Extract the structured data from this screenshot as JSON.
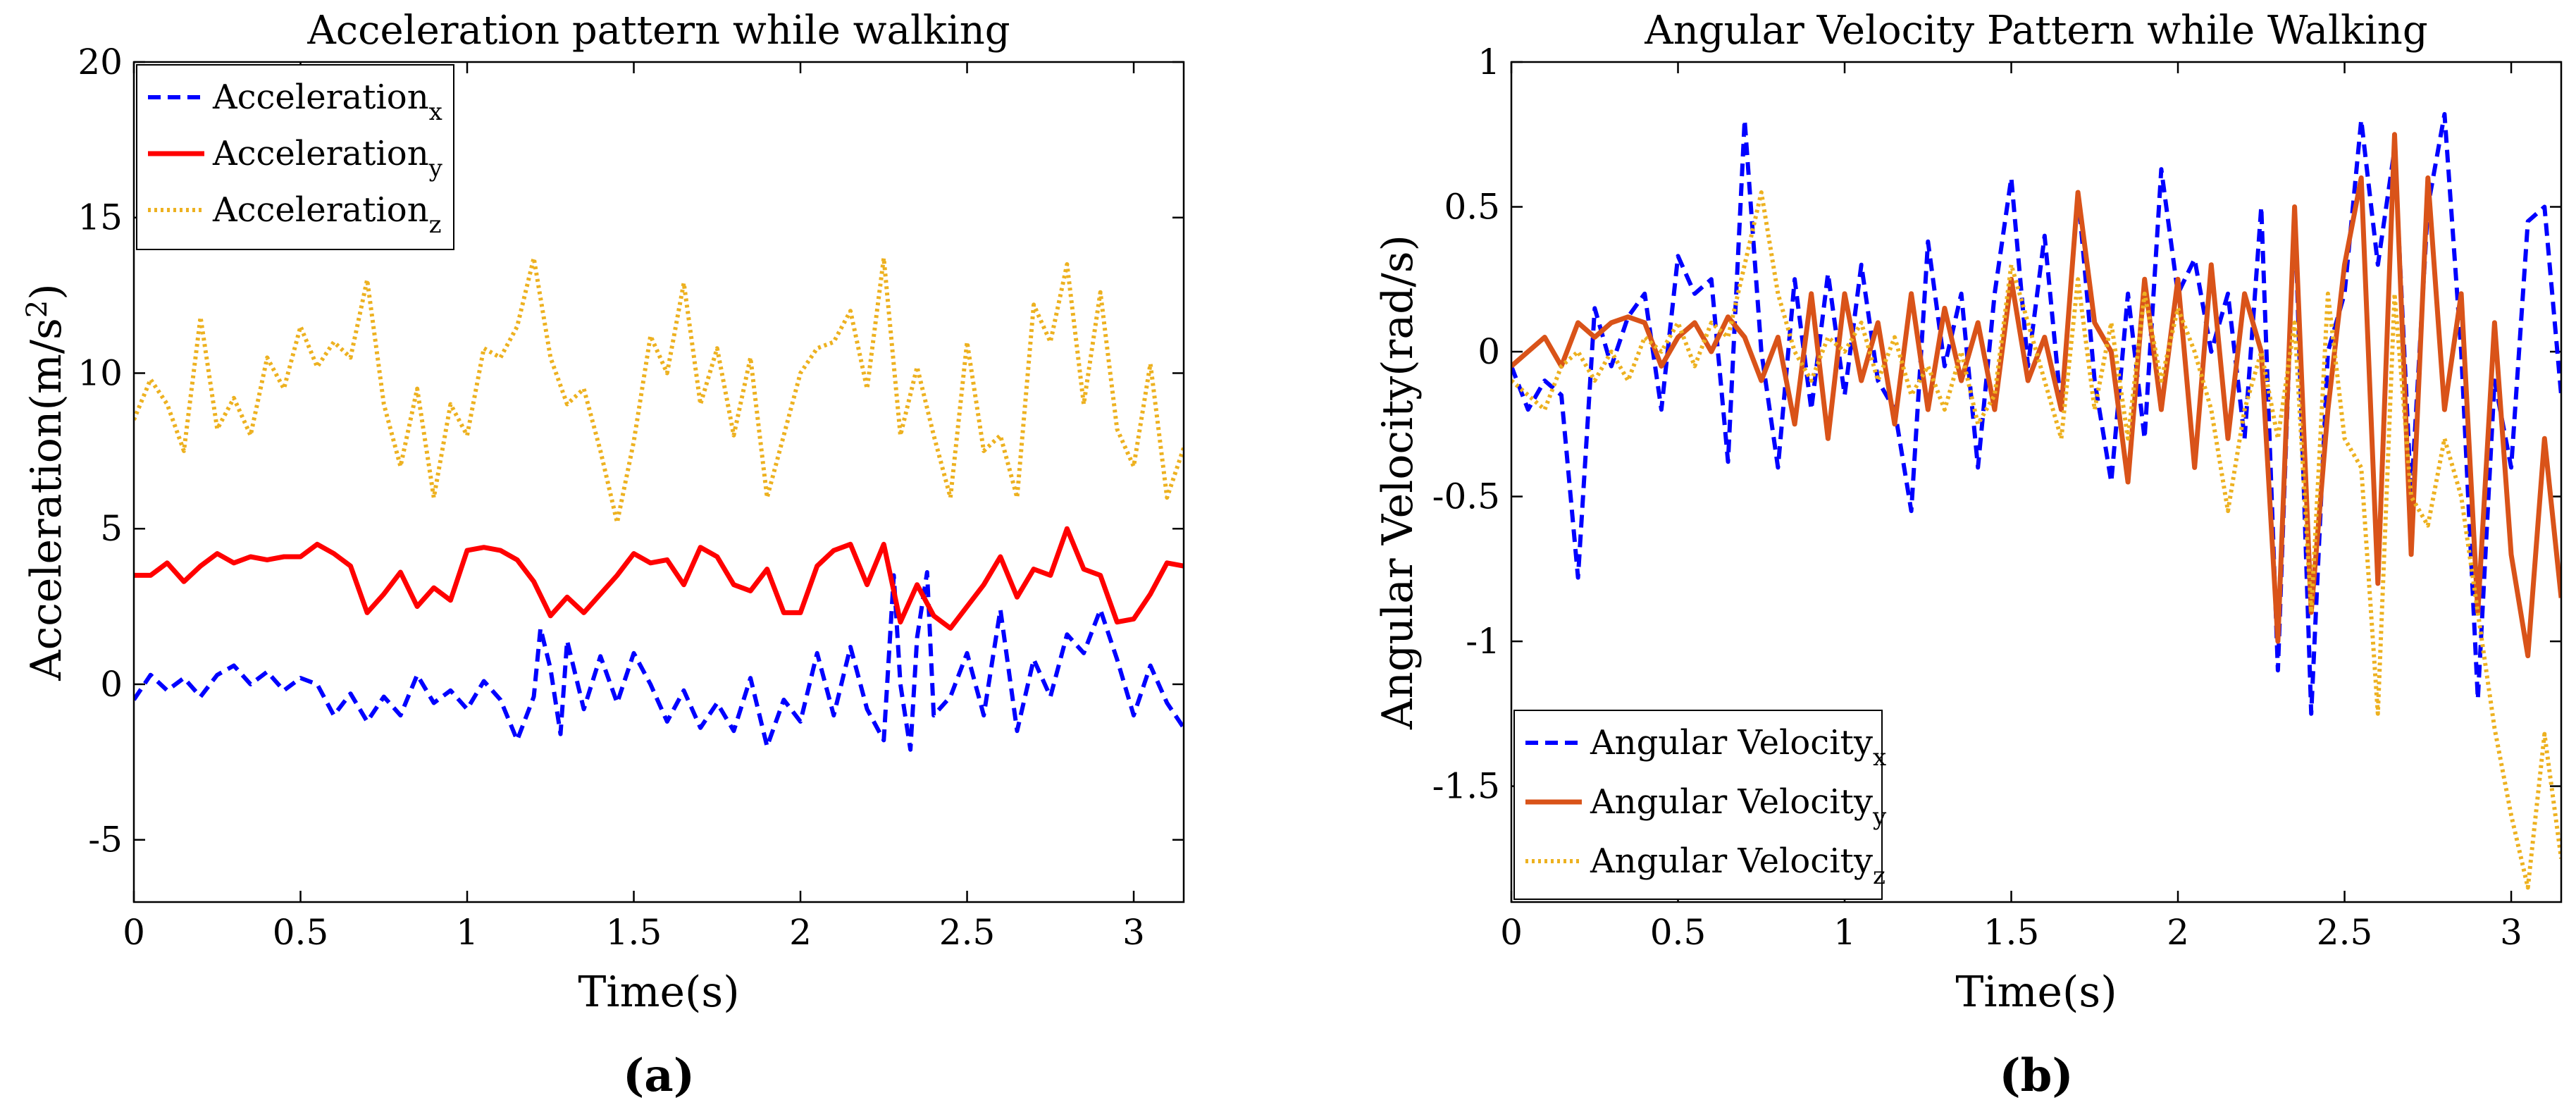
{
  "chart_data": [
    {
      "type": "line",
      "panel_label": "(a)",
      "title": "Acceleration pattern while walking",
      "xlabel": "Time(s)",
      "ylabel": "Acceleration(m/s",
      "ylabel_sup": "2",
      "ylabel_close": ")",
      "xlim": [
        0,
        3.15
      ],
      "ylim": [
        -7,
        20
      ],
      "xticks": [
        0,
        0.5,
        1,
        1.5,
        2,
        2.5,
        3
      ],
      "xtick_labels": [
        "0",
        "0.5",
        "1",
        "1.5",
        "2",
        "2.5",
        "3"
      ],
      "yticks": [
        -5,
        0,
        5,
        10,
        15,
        20
      ],
      "ytick_labels": [
        "-5",
        "0",
        "5",
        "10",
        "15",
        "20"
      ],
      "legend_position": "top-left",
      "series": [
        {
          "name": "Acceleration",
          "sub": "x",
          "color": "#0000ff",
          "style": "dashed",
          "x": [
            0,
            0.05,
            0.1,
            0.15,
            0.2,
            0.25,
            0.3,
            0.35,
            0.4,
            0.45,
            0.5,
            0.55,
            0.6,
            0.65,
            0.7,
            0.75,
            0.8,
            0.85,
            0.9,
            0.95,
            1.0,
            1.05,
            1.1,
            1.15,
            1.2,
            1.22,
            1.25,
            1.28,
            1.3,
            1.35,
            1.4,
            1.45,
            1.5,
            1.55,
            1.6,
            1.65,
            1.7,
            1.75,
            1.8,
            1.85,
            1.9,
            1.95,
            2.0,
            2.05,
            2.1,
            2.15,
            2.2,
            2.25,
            2.28,
            2.3,
            2.33,
            2.35,
            2.38,
            2.4,
            2.45,
            2.5,
            2.55,
            2.6,
            2.65,
            2.7,
            2.75,
            2.8,
            2.85,
            2.9,
            2.95,
            3.0,
            3.05,
            3.1,
            3.15
          ],
          "values": [
            -0.5,
            0.3,
            -0.2,
            0.2,
            -0.4,
            0.3,
            0.6,
            0.0,
            0.4,
            -0.2,
            0.2,
            0.0,
            -1.0,
            -0.3,
            -1.2,
            -0.4,
            -1.0,
            0.3,
            -0.6,
            -0.2,
            -0.8,
            0.1,
            -0.5,
            -1.8,
            -0.4,
            1.8,
            0.5,
            -1.6,
            1.4,
            -0.8,
            0.9,
            -0.6,
            1.0,
            0.0,
            -1.2,
            -0.2,
            -1.4,
            -0.6,
            -1.5,
            0.2,
            -2.0,
            -0.5,
            -1.2,
            1.0,
            -1.0,
            1.2,
            -0.8,
            -1.8,
            3.5,
            0.0,
            -2.1,
            1.5,
            3.6,
            -1.0,
            -0.4,
            1.0,
            -1.0,
            2.4,
            -1.5,
            0.8,
            -0.4,
            1.6,
            1.0,
            2.4,
            0.8,
            -1.0,
            0.6,
            -0.6,
            -1.4
          ]
        },
        {
          "name": "Acceleration",
          "sub": "y",
          "color": "#ff0000",
          "style": "solid",
          "x": [
            0,
            0.05,
            0.1,
            0.15,
            0.2,
            0.25,
            0.3,
            0.35,
            0.4,
            0.45,
            0.5,
            0.55,
            0.6,
            0.65,
            0.7,
            0.75,
            0.8,
            0.85,
            0.9,
            0.95,
            1.0,
            1.05,
            1.1,
            1.15,
            1.2,
            1.25,
            1.3,
            1.35,
            1.4,
            1.45,
            1.5,
            1.55,
            1.6,
            1.65,
            1.7,
            1.75,
            1.8,
            1.85,
            1.9,
            1.95,
            2.0,
            2.05,
            2.1,
            2.15,
            2.2,
            2.25,
            2.3,
            2.35,
            2.4,
            2.45,
            2.5,
            2.55,
            2.6,
            2.65,
            2.7,
            2.75,
            2.8,
            2.85,
            2.9,
            2.95,
            3.0,
            3.05,
            3.1,
            3.15
          ],
          "values": [
            3.5,
            3.5,
            3.9,
            3.3,
            3.8,
            4.2,
            3.9,
            4.1,
            4.0,
            4.1,
            4.1,
            4.5,
            4.2,
            3.8,
            2.3,
            2.9,
            3.6,
            2.5,
            3.1,
            2.7,
            4.3,
            4.4,
            4.3,
            4.0,
            3.3,
            2.2,
            2.8,
            2.3,
            2.9,
            3.5,
            4.2,
            3.9,
            4.0,
            3.2,
            4.4,
            4.1,
            3.2,
            3.0,
            3.7,
            2.3,
            2.3,
            3.8,
            4.3,
            4.5,
            3.2,
            4.5,
            2.0,
            3.2,
            2.2,
            1.8,
            2.5,
            3.2,
            4.1,
            2.8,
            3.7,
            3.5,
            5.0,
            3.7,
            3.5,
            2.0,
            2.1,
            2.9,
            3.9,
            3.8
          ]
        },
        {
          "name": "Acceleration",
          "sub": "z",
          "color": "#edb120",
          "style": "dotted",
          "x": [
            0,
            0.05,
            0.1,
            0.15,
            0.2,
            0.25,
            0.3,
            0.35,
            0.4,
            0.45,
            0.5,
            0.55,
            0.6,
            0.65,
            0.7,
            0.75,
            0.8,
            0.85,
            0.9,
            0.95,
            1.0,
            1.05,
            1.1,
            1.15,
            1.2,
            1.25,
            1.3,
            1.35,
            1.4,
            1.45,
            1.5,
            1.55,
            1.6,
            1.65,
            1.7,
            1.75,
            1.8,
            1.85,
            1.9,
            1.95,
            2.0,
            2.05,
            2.1,
            2.15,
            2.2,
            2.25,
            2.3,
            2.35,
            2.4,
            2.45,
            2.5,
            2.55,
            2.6,
            2.65,
            2.7,
            2.75,
            2.8,
            2.85,
            2.9,
            2.95,
            3.0,
            3.05,
            3.1,
            3.15
          ],
          "values": [
            8.5,
            9.8,
            9.0,
            7.5,
            11.8,
            8.2,
            9.2,
            8.0,
            10.5,
            9.5,
            11.5,
            10.2,
            11.0,
            10.5,
            13.0,
            9.0,
            7.0,
            9.5,
            6.0,
            9.0,
            8.0,
            10.8,
            10.5,
            11.5,
            13.7,
            10.5,
            9.0,
            9.5,
            7.5,
            5.2,
            7.8,
            11.2,
            10.0,
            12.9,
            9.0,
            10.8,
            8.0,
            10.5,
            6.0,
            8.0,
            10.0,
            10.8,
            11.0,
            12.0,
            9.5,
            13.7,
            8.0,
            10.2,
            8.0,
            6.0,
            11.0,
            7.5,
            8.0,
            6.0,
            12.2,
            11.0,
            13.5,
            9.0,
            12.6,
            8.2,
            7.0,
            10.3,
            6.0,
            7.6
          ]
        }
      ]
    },
    {
      "type": "line",
      "panel_label": "(b)",
      "title": "Angular Velocity Pattern while Walking",
      "xlabel": "Time(s)",
      "ylabel": "Angular Velocity(rad/s)",
      "xlim": [
        0,
        3.15
      ],
      "ylim": [
        -1.9,
        1.0
      ],
      "xticks": [
        0,
        0.5,
        1,
        1.5,
        2,
        2.5,
        3
      ],
      "xtick_labels": [
        "0",
        "0.5",
        "1",
        "1.5",
        "2",
        "2.5",
        "3"
      ],
      "yticks": [
        -1.5,
        -1,
        -0.5,
        0,
        0.5,
        1
      ],
      "ytick_labels": [
        "-1.5",
        "-1",
        "-0.5",
        "0",
        "0.5",
        "1"
      ],
      "legend_position": "bottom-left",
      "series": [
        {
          "name": "Angular Velocity",
          "sub": "x",
          "color": "#0000ff",
          "style": "dashed",
          "x": [
            0,
            0.05,
            0.1,
            0.15,
            0.2,
            0.25,
            0.3,
            0.35,
            0.4,
            0.45,
            0.5,
            0.55,
            0.6,
            0.65,
            0.7,
            0.75,
            0.8,
            0.85,
            0.9,
            0.95,
            1.0,
            1.05,
            1.1,
            1.15,
            1.2,
            1.25,
            1.3,
            1.35,
            1.4,
            1.45,
            1.5,
            1.55,
            1.6,
            1.65,
            1.7,
            1.75,
            1.8,
            1.85,
            1.9,
            1.95,
            2.0,
            2.05,
            2.1,
            2.15,
            2.2,
            2.25,
            2.3,
            2.35,
            2.4,
            2.45,
            2.5,
            2.55,
            2.6,
            2.65,
            2.7,
            2.75,
            2.8,
            2.85,
            2.9,
            2.95,
            3.0,
            3.05,
            3.1,
            3.15
          ],
          "values": [
            -0.05,
            -0.2,
            -0.1,
            -0.15,
            -0.78,
            0.15,
            -0.05,
            0.12,
            0.2,
            -0.2,
            0.33,
            0.2,
            0.25,
            -0.38,
            0.8,
            0.0,
            -0.4,
            0.25,
            -0.2,
            0.27,
            -0.15,
            0.3,
            -0.1,
            -0.2,
            -0.55,
            0.38,
            -0.05,
            0.2,
            -0.4,
            0.2,
            0.6,
            -0.05,
            0.4,
            -0.2,
            0.55,
            -0.1,
            -0.45,
            0.2,
            -0.3,
            0.63,
            0.2,
            0.32,
            0.0,
            0.2,
            -0.3,
            0.5,
            -1.1,
            0.5,
            -1.25,
            0.0,
            0.2,
            0.8,
            0.3,
            0.7,
            -0.5,
            0.5,
            0.82,
            0.0,
            -1.2,
            -0.1,
            -0.4,
            0.45,
            0.5,
            -0.15
          ]
        },
        {
          "name": "Angular Velocity",
          "sub": "y",
          "color": "#d95319",
          "style": "solid",
          "x": [
            0,
            0.05,
            0.1,
            0.15,
            0.2,
            0.25,
            0.3,
            0.35,
            0.4,
            0.45,
            0.5,
            0.55,
            0.6,
            0.65,
            0.7,
            0.75,
            0.8,
            0.85,
            0.9,
            0.95,
            1.0,
            1.05,
            1.1,
            1.15,
            1.2,
            1.25,
            1.3,
            1.35,
            1.4,
            1.45,
            1.5,
            1.55,
            1.6,
            1.65,
            1.7,
            1.75,
            1.8,
            1.85,
            1.9,
            1.95,
            2.0,
            2.05,
            2.1,
            2.15,
            2.2,
            2.25,
            2.3,
            2.35,
            2.4,
            2.45,
            2.5,
            2.55,
            2.6,
            2.65,
            2.7,
            2.75,
            2.8,
            2.85,
            2.9,
            2.95,
            3.0,
            3.05,
            3.1,
            3.15
          ],
          "values": [
            -0.05,
            0.0,
            0.05,
            -0.05,
            0.1,
            0.05,
            0.1,
            0.12,
            0.1,
            -0.05,
            0.05,
            0.1,
            0.0,
            0.12,
            0.05,
            -0.1,
            0.05,
            -0.25,
            0.2,
            -0.3,
            0.2,
            -0.1,
            0.1,
            -0.25,
            0.2,
            -0.2,
            0.15,
            -0.1,
            0.1,
            -0.2,
            0.25,
            -0.1,
            0.05,
            -0.2,
            0.55,
            0.1,
            0.0,
            -0.45,
            0.25,
            -0.2,
            0.25,
            -0.4,
            0.3,
            -0.3,
            0.2,
            0.0,
            -1.0,
            0.5,
            -0.9,
            -0.2,
            0.3,
            0.6,
            -0.8,
            0.75,
            -0.7,
            0.6,
            -0.2,
            0.2,
            -0.9,
            0.1,
            -0.7,
            -1.05,
            -0.3,
            -0.85
          ]
        },
        {
          "name": "Angular Velocity",
          "sub": "z",
          "color": "#edb120",
          "style": "dotted",
          "x": [
            0,
            0.05,
            0.1,
            0.15,
            0.2,
            0.25,
            0.3,
            0.35,
            0.4,
            0.45,
            0.5,
            0.55,
            0.6,
            0.65,
            0.7,
            0.75,
            0.8,
            0.85,
            0.9,
            0.95,
            1.0,
            1.05,
            1.1,
            1.15,
            1.2,
            1.25,
            1.3,
            1.35,
            1.4,
            1.45,
            1.5,
            1.55,
            1.6,
            1.65,
            1.7,
            1.75,
            1.8,
            1.85,
            1.9,
            1.95,
            2.0,
            2.05,
            2.1,
            2.15,
            2.2,
            2.25,
            2.3,
            2.35,
            2.4,
            2.45,
            2.5,
            2.55,
            2.6,
            2.65,
            2.7,
            2.75,
            2.8,
            2.85,
            2.9,
            2.95,
            3.0,
            3.05,
            3.1,
            3.15
          ],
          "values": [
            -0.1,
            -0.15,
            -0.2,
            -0.05,
            0.0,
            -0.1,
            0.0,
            -0.1,
            0.05,
            0.0,
            0.1,
            -0.05,
            0.1,
            0.05,
            0.3,
            0.55,
            0.2,
            0.0,
            -0.1,
            0.05,
            0.0,
            0.1,
            -0.1,
            0.05,
            -0.15,
            -0.05,
            -0.2,
            0.0,
            -0.25,
            -0.15,
            0.3,
            0.1,
            -0.1,
            -0.3,
            0.25,
            -0.2,
            0.1,
            -0.3,
            0.2,
            -0.1,
            0.15,
            0.0,
            -0.2,
            -0.55,
            -0.2,
            0.0,
            -0.3,
            0.1,
            -0.9,
            0.2,
            -0.3,
            -0.4,
            -1.25,
            0.2,
            -0.5,
            -0.6,
            -0.3,
            -0.5,
            -0.9,
            -1.3,
            -1.6,
            -1.85,
            -1.32,
            -1.75
          ]
        }
      ]
    }
  ]
}
